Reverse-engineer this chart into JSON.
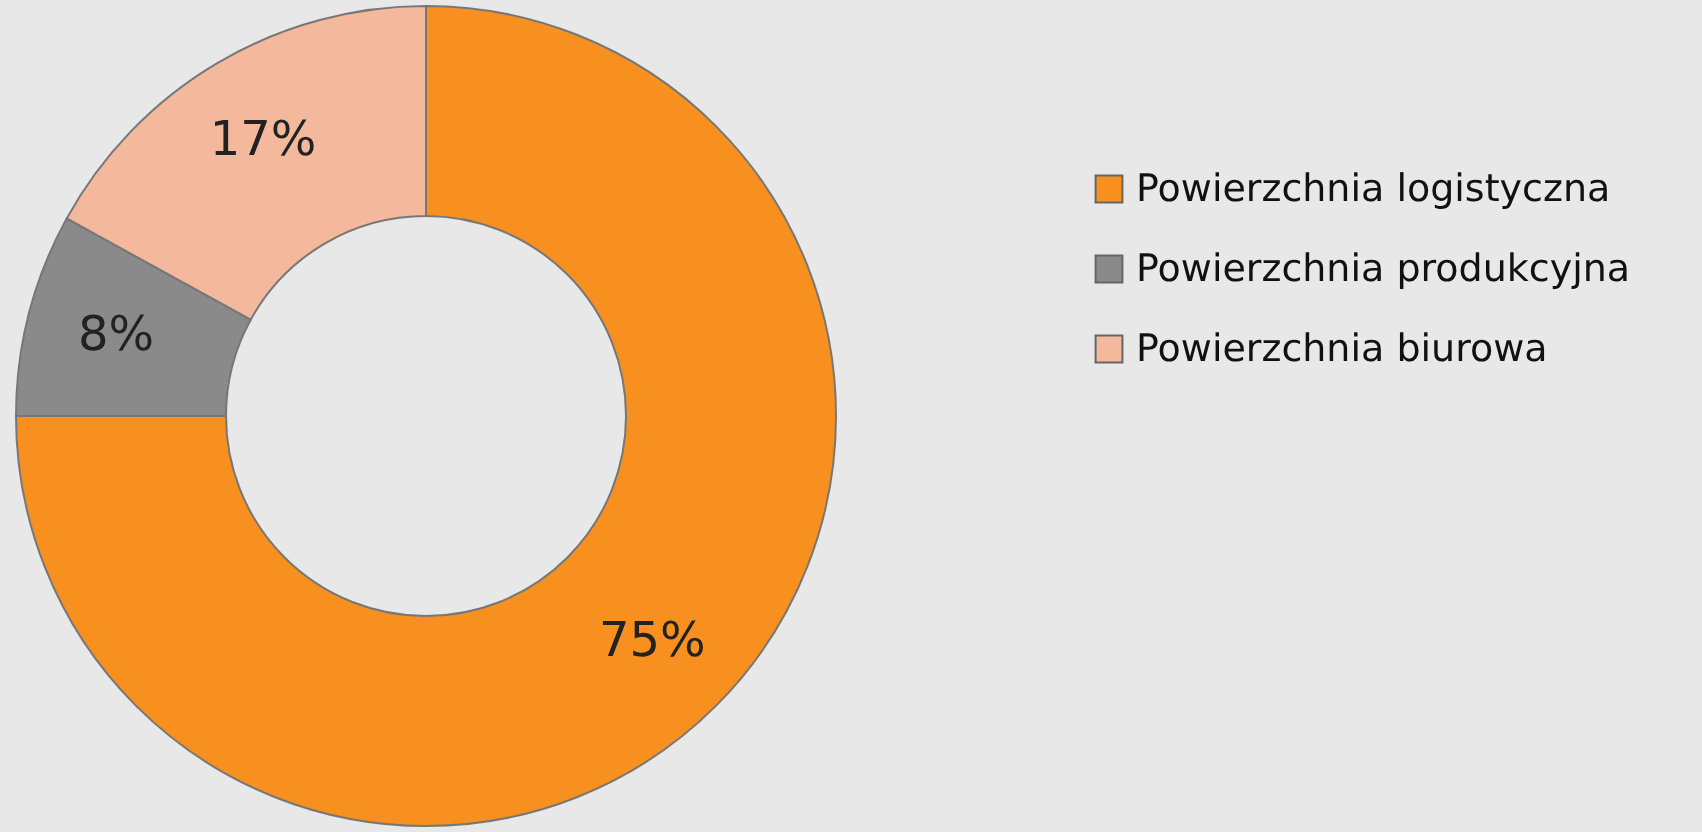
{
  "chart_data": {
    "type": "donut",
    "categories": [
      "Powierzchnia logistyczna",
      "Powierzchnia produkcyjna",
      "Powierzchnia biurowa"
    ],
    "values": [
      75,
      8,
      17
    ],
    "colors": [
      "#f7901e",
      "#8a8a8a",
      "#f4b89c"
    ],
    "value_labels": [
      "75%",
      "8%",
      "17%"
    ],
    "legend": "right"
  }
}
